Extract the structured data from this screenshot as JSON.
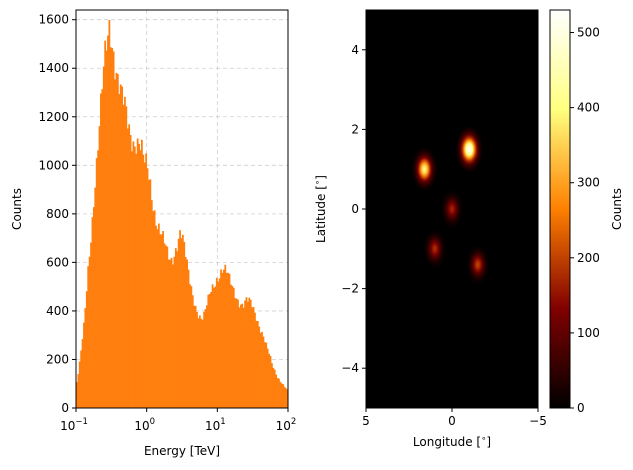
{
  "chart_data": [
    {
      "type": "histogram",
      "xlabel": "Energy [TeV]",
      "ylabel": "Counts",
      "xscale": "log",
      "xlim": [
        0.1,
        100
      ],
      "ylim": [
        0,
        1640
      ],
      "grid": true,
      "bar_color": "#ff7f0e",
      "xticks": [
        {
          "value": 0.1,
          "base": "10",
          "exp": "−1"
        },
        {
          "value": 1,
          "base": "10",
          "exp": "0"
        },
        {
          "value": 10,
          "base": "10",
          "exp": "1"
        },
        {
          "value": 100,
          "base": "10",
          "exp": "2"
        }
      ],
      "yticks": [
        {
          "value": 0,
          "label": "0"
        },
        {
          "value": 200,
          "label": "200"
        },
        {
          "value": 400,
          "label": "400"
        },
        {
          "value": 600,
          "label": "600"
        },
        {
          "value": 800,
          "label": "800"
        },
        {
          "value": 1000,
          "label": "1000"
        },
        {
          "value": 1200,
          "label": "1200"
        },
        {
          "value": 1400,
          "label": "1400"
        },
        {
          "value": 1600,
          "label": "1600"
        }
      ],
      "profile": [
        [
          0.1,
          90
        ],
        [
          0.11,
          160
        ],
        [
          0.12,
          250
        ],
        [
          0.13,
          340
        ],
        [
          0.14,
          470
        ],
        [
          0.15,
          600
        ],
        [
          0.16,
          700
        ],
        [
          0.17,
          800
        ],
        [
          0.18,
          900
        ],
        [
          0.19,
          980
        ],
        [
          0.2,
          1050
        ],
        [
          0.21,
          1120
        ],
        [
          0.22,
          1190
        ],
        [
          0.23,
          1260
        ],
        [
          0.24,
          1320
        ],
        [
          0.25,
          1380
        ],
        [
          0.26,
          1440
        ],
        [
          0.27,
          1480
        ],
        [
          0.28,
          1520
        ],
        [
          0.29,
          1560
        ],
        [
          0.3,
          1600
        ],
        [
          0.32,
          1550
        ],
        [
          0.34,
          1500
        ],
        [
          0.36,
          1440
        ],
        [
          0.38,
          1390
        ],
        [
          0.4,
          1340
        ],
        [
          0.43,
          1280
        ],
        [
          0.46,
          1240
        ],
        [
          0.5,
          1200
        ],
        [
          0.55,
          1150
        ],
        [
          0.6,
          1130
        ],
        [
          0.65,
          1120
        ],
        [
          0.7,
          1125
        ],
        [
          0.75,
          1110
        ],
        [
          0.8,
          1090
        ],
        [
          0.85,
          1050
        ],
        [
          0.9,
          1000
        ],
        [
          0.95,
          985
        ],
        [
          1.0,
          975
        ],
        [
          1.1,
          930
        ],
        [
          1.2,
          870
        ],
        [
          1.3,
          820
        ],
        [
          1.4,
          780
        ],
        [
          1.5,
          750
        ],
        [
          1.6,
          720
        ],
        [
          1.8,
          660
        ],
        [
          2.0,
          610
        ],
        [
          2.2,
          600
        ],
        [
          2.4,
          630
        ],
        [
          2.6,
          680
        ],
        [
          2.8,
          715
        ],
        [
          3.0,
          740
        ],
        [
          3.2,
          705
        ],
        [
          3.4,
          650
        ],
        [
          3.7,
          580
        ],
        [
          4.0,
          520
        ],
        [
          4.5,
          460
        ],
        [
          5.0,
          420
        ],
        [
          5.5,
          390
        ],
        [
          6.0,
          370
        ],
        [
          6.5,
          380
        ],
        [
          7.0,
          410
        ],
        [
          7.5,
          440
        ],
        [
          8.0,
          470
        ],
        [
          9.0,
          510
        ],
        [
          10,
          550
        ],
        [
          11,
          570
        ],
        [
          12,
          580
        ],
        [
          13,
          560
        ],
        [
          14,
          540
        ],
        [
          15,
          510
        ],
        [
          17,
          480
        ],
        [
          20,
          450
        ],
        [
          23,
          430
        ],
        [
          26,
          440
        ],
        [
          30,
          420
        ],
        [
          35,
          380
        ],
        [
          40,
          340
        ],
        [
          45,
          300
        ],
        [
          50,
          250
        ],
        [
          55,
          210
        ],
        [
          60,
          170
        ],
        [
          70,
          130
        ],
        [
          80,
          110
        ],
        [
          100,
          70
        ]
      ]
    },
    {
      "type": "heatmap",
      "xlabel": "Longitude [$^{\\circ}$]",
      "ylabel": "Latitude [$^{\\circ}$]",
      "x_range": [
        5,
        -5
      ],
      "y_range": [
        -5,
        5
      ],
      "colormap": "afmhot",
      "xticks": [
        {
          "value": 5,
          "label": "5"
        },
        {
          "value": 0,
          "label": "0"
        },
        {
          "value": -5,
          "label": "−5"
        }
      ],
      "yticks": [
        {
          "value": -4,
          "label": "−4"
        },
        {
          "value": -2,
          "label": "−2"
        },
        {
          "value": 0,
          "label": "0"
        },
        {
          "value": 2,
          "label": "2"
        },
        {
          "value": 4,
          "label": "4"
        }
      ],
      "sources": [
        {
          "lon": -1.0,
          "lat": 1.5,
          "peak": 525
        },
        {
          "lon": 1.6,
          "lat": 1.0,
          "peak": 400
        },
        {
          "lon": 0.0,
          "lat": 0.0,
          "peak": 170
        },
        {
          "lon": 1.0,
          "lat": -1.0,
          "peak": 180
        },
        {
          "lon": -1.5,
          "lat": -1.4,
          "peak": 200
        }
      ],
      "colorbar": {
        "label": "Counts",
        "range": [
          0,
          530
        ],
        "ticks": [
          {
            "value": 0,
            "label": "0"
          },
          {
            "value": 100,
            "label": "100"
          },
          {
            "value": 200,
            "label": "200"
          },
          {
            "value": 300,
            "label": "300"
          },
          {
            "value": 400,
            "label": "400"
          },
          {
            "value": 500,
            "label": "500"
          }
        ]
      }
    }
  ]
}
